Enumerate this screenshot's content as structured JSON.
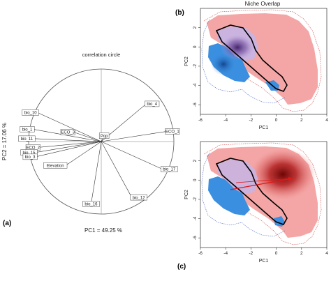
{
  "figure": {
    "niche_title": "Niche Overlap",
    "panel_a": "(a)",
    "panel_b": "(b)",
    "panel_c": "(c)"
  },
  "chart_data": [
    {
      "type": "scatter",
      "subtype": "correlation-circle",
      "title": "correlation circle",
      "xlabel": "PC1  =  49.25 %",
      "ylabel": "PC2  =  17.06 %",
      "xlim": [
        -1,
        1
      ],
      "ylim": [
        -1,
        1
      ],
      "vectors": [
        {
          "name": "bio_4",
          "x": 0.62,
          "y": 0.52
        },
        {
          "name": "bio_10",
          "x": -0.88,
          "y": 0.4
        },
        {
          "name": "bio_1",
          "x": -0.94,
          "y": 0.17
        },
        {
          "name": "ECO_3",
          "x": -0.38,
          "y": 0.13
        },
        {
          "name": "Pop",
          "x": 0.04,
          "y": 0.08
        },
        {
          "name": "ECO_1",
          "x": 0.9,
          "y": 0.14
        },
        {
          "name": "bio_11",
          "x": -0.93,
          "y": 0.04
        },
        {
          "name": "ECO_2",
          "x": -0.86,
          "y": -0.08
        },
        {
          "name": "bio_15",
          "x": -0.9,
          "y": -0.15
        },
        {
          "name": "bio_3",
          "x": -0.9,
          "y": -0.21
        },
        {
          "name": "Elevation",
          "x": -0.49,
          "y": -0.33
        },
        {
          "name": "bio_17",
          "x": 0.84,
          "y": -0.38
        },
        {
          "name": "bio_12",
          "x": 0.42,
          "y": -0.77
        },
        {
          "name": "bio_16",
          "x": -0.14,
          "y": -0.86
        }
      ]
    },
    {
      "type": "area",
      "subtype": "niche-density",
      "panel": "(b)",
      "xlabel": "PC1",
      "ylabel": "PC2",
      "x_ticks": [
        "-6",
        "-4",
        "-2",
        "0",
        "2",
        "4"
      ],
      "y_ticks": [
        "2",
        "0",
        "-2",
        "-4",
        "-6"
      ],
      "xlim": [
        -6,
        4
      ],
      "ylim": [
        -7,
        4
      ],
      "colors": {
        "niche_a": "#3b8fe0",
        "niche_b": "#f4a0a0",
        "overlap": "#b8a0d8",
        "outline": "#000000"
      }
    },
    {
      "type": "area",
      "subtype": "niche-density",
      "panel": "(c)",
      "xlabel": "PC1",
      "ylabel": "PC2",
      "x_ticks": [
        "-6",
        "-4",
        "-2",
        "0",
        "2",
        "4"
      ],
      "y_ticks": [
        "2",
        "0",
        "-2",
        "-4",
        "-6"
      ],
      "xlim": [
        -6,
        4
      ],
      "ylim": [
        -7,
        4
      ],
      "centroid_shift": {
        "from": [
          -3.0,
          -0.5
        ],
        "to": [
          1.5,
          0.7
        ]
      },
      "colors": {
        "niche_a": "#3b8fe0",
        "niche_b": "#f4a0a0",
        "hotspot": "#8b0a0a",
        "arrow": "#e01818",
        "outline": "#000000"
      }
    }
  ]
}
